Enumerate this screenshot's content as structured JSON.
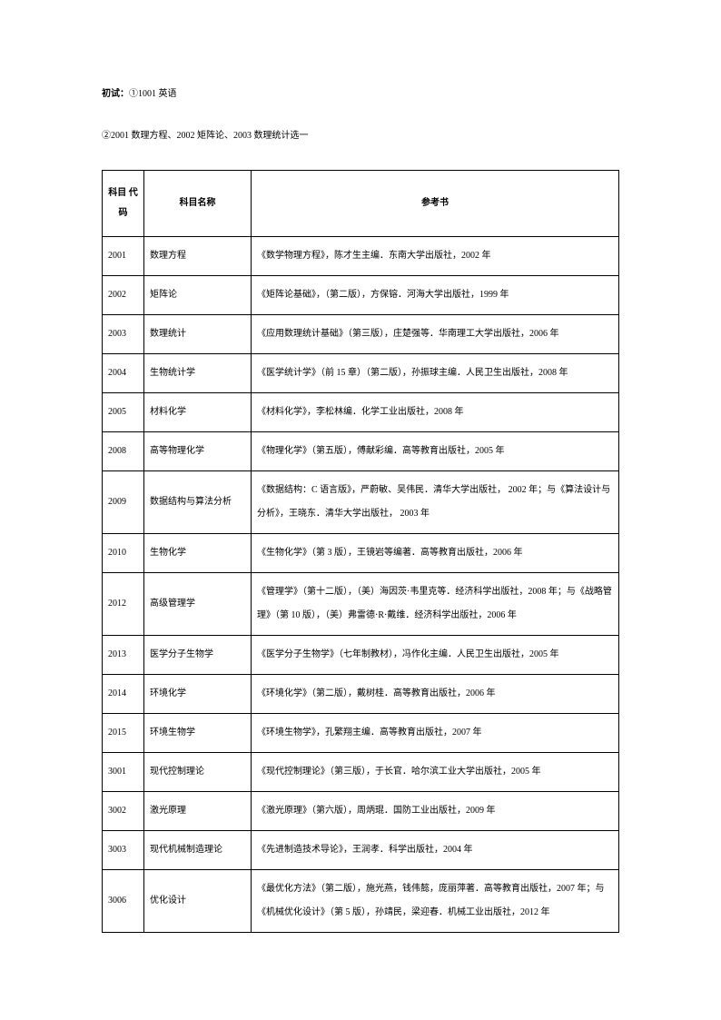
{
  "intro": {
    "line1_label": "初试：",
    "line1_text": "①1001 英语",
    "line2_text": "②2001 数理方程、2002 矩阵论、2003 数理统计选一"
  },
  "table": {
    "headers": {
      "code": "科目 代码",
      "name": "科目名称",
      "ref": "参考书"
    },
    "rows": [
      {
        "code": "2001",
        "name": "数理方程",
        "ref": "《数学物理方程》，陈才生主编．东南大学出版社，2002 年"
      },
      {
        "code": "2002",
        "name": "矩阵论",
        "ref": "《矩阵论基础》，（第二版），方保镕．河海大学出版社，1999 年"
      },
      {
        "code": "2003",
        "name": "数理统计",
        "ref": "《应用数理统计基础》（第三版），庄楚强等．华南理工大学出版社，2006 年"
      },
      {
        "code": "2004",
        "name": "生物统计学",
        "ref": "《医学统计学》（前 15 章）（第二版），孙振球主编．人民卫生出版社，2008 年"
      },
      {
        "code": "2005",
        "name": "材料化学",
        "ref": "《材料化学》，李松林编．化学工业出版社，2008 年"
      },
      {
        "code": "2008",
        "name": "高等物理化学",
        "ref": "《物理化学》（第五版），傅献彩编．高等教育出版社，2005 年"
      },
      {
        "code": "2009",
        "name": "数据结构与算法分析",
        "ref": "《数据结构：C 语言版》，严蔚敏、吴伟民．清华大学出版社， 2002 年；与《算法设计与分析》，王晓东．清华大学出版社， 2003 年"
      },
      {
        "code": "2010",
        "name": "生物化学",
        "ref": "《生物化学》（第 3 版），王镜岩等编著．高等教育出版社，2006 年"
      },
      {
        "code": "2012",
        "name": "高级管理学",
        "ref": "《管理学》（第十二版），（美）海因茨·韦里克等．经济科学出版社，2008 年；与《战略管理》（第 10 版），（美）弗雷德·R·戴维．经济科学出版社，2006 年"
      },
      {
        "code": "2013",
        "name": "医学分子生物学",
        "ref": "《医学分子生物学》（七年制教材），冯作化主编．人民卫生出版社，2005 年"
      },
      {
        "code": "2014",
        "name": "环境化学",
        "ref": "《环境化学》（第二版），戴树桂．高等教育出版社，2006 年"
      },
      {
        "code": "2015",
        "name": "环境生物学",
        "ref": "《环境生物学》，孔繁翔主编．高等教育出版社，2007 年"
      },
      {
        "code": "3001",
        "name": "现代控制理论",
        "ref": "《现代控制理论》（第三版），于长官．哈尔滨工业大学出版社，2005 年"
      },
      {
        "code": "3002",
        "name": "激光原理",
        "ref": "《激光原理》（第六版），周炳琨．国防工业出版社，2009 年"
      },
      {
        "code": "3003",
        "name": "现代机械制造理论",
        "ref": "《先进制造技术导论》，王润孝．科学出版社，2004 年"
      },
      {
        "code": "3006",
        "name": "优化设计",
        "ref": "《最优化方法》（第二版），施光燕，钱伟懿，庞丽萍著．高等教育出版社，2007 年；与《机械优化设计》（第 5 版），孙靖民，梁迎春．机械工业出版社，2012 年"
      }
    ]
  }
}
